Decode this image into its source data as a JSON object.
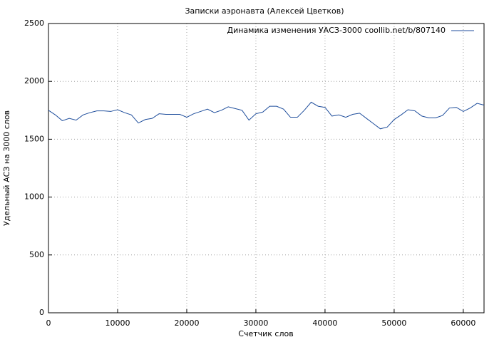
{
  "chart_data": {
    "type": "line",
    "title": "Записки аэронавта (Алексей Цветков)",
    "xlabel": "Счетчик слов",
    "ylabel": "Удельный АСЗ на 3000 слов",
    "x": [
      0,
      1000,
      2000,
      3000,
      4000,
      5000,
      6000,
      7000,
      8000,
      9000,
      10000,
      11000,
      12000,
      13000,
      14000,
      15000,
      16000,
      17000,
      18000,
      19000,
      20000,
      21000,
      22000,
      23000,
      24000,
      25000,
      26000,
      27000,
      28000,
      29000,
      30000,
      31000,
      32000,
      33000,
      34000,
      35000,
      36000,
      37000,
      38000,
      39000,
      40000,
      41000,
      42000,
      43000,
      44000,
      45000,
      46000,
      47000,
      48000,
      49000,
      50000,
      51000,
      52000,
      53000,
      54000,
      55000,
      56000,
      57000,
      58000,
      59000,
      60000,
      61000,
      62000,
      63000
    ],
    "series": [
      {
        "name": "Динамика изменения УАСЗ-3000 coollib.net/b/807140",
        "color": "#1f4e9c",
        "values": [
          1750,
          1710,
          1660,
          1680,
          1665,
          1710,
          1730,
          1745,
          1745,
          1740,
          1755,
          1730,
          1710,
          1640,
          1670,
          1680,
          1720,
          1715,
          1715,
          1715,
          1690,
          1720,
          1740,
          1760,
          1730,
          1750,
          1780,
          1765,
          1750,
          1665,
          1720,
          1735,
          1785,
          1785,
          1760,
          1690,
          1690,
          1750,
          1820,
          1785,
          1775,
          1700,
          1710,
          1690,
          1715,
          1725,
          1680,
          1635,
          1590,
          1605,
          1670,
          1710,
          1755,
          1745,
          1700,
          1685,
          1685,
          1705,
          1770,
          1775,
          1740,
          1770,
          1810,
          1795
        ]
      }
    ],
    "xlim": [
      0,
      63000
    ],
    "ylim": [
      0,
      2500
    ],
    "xticks": [
      0,
      10000,
      20000,
      30000,
      40000,
      50000,
      60000
    ],
    "yticks": [
      0,
      500,
      1000,
      1500,
      2000,
      2500
    ],
    "grid": true,
    "legend": "top-right"
  }
}
